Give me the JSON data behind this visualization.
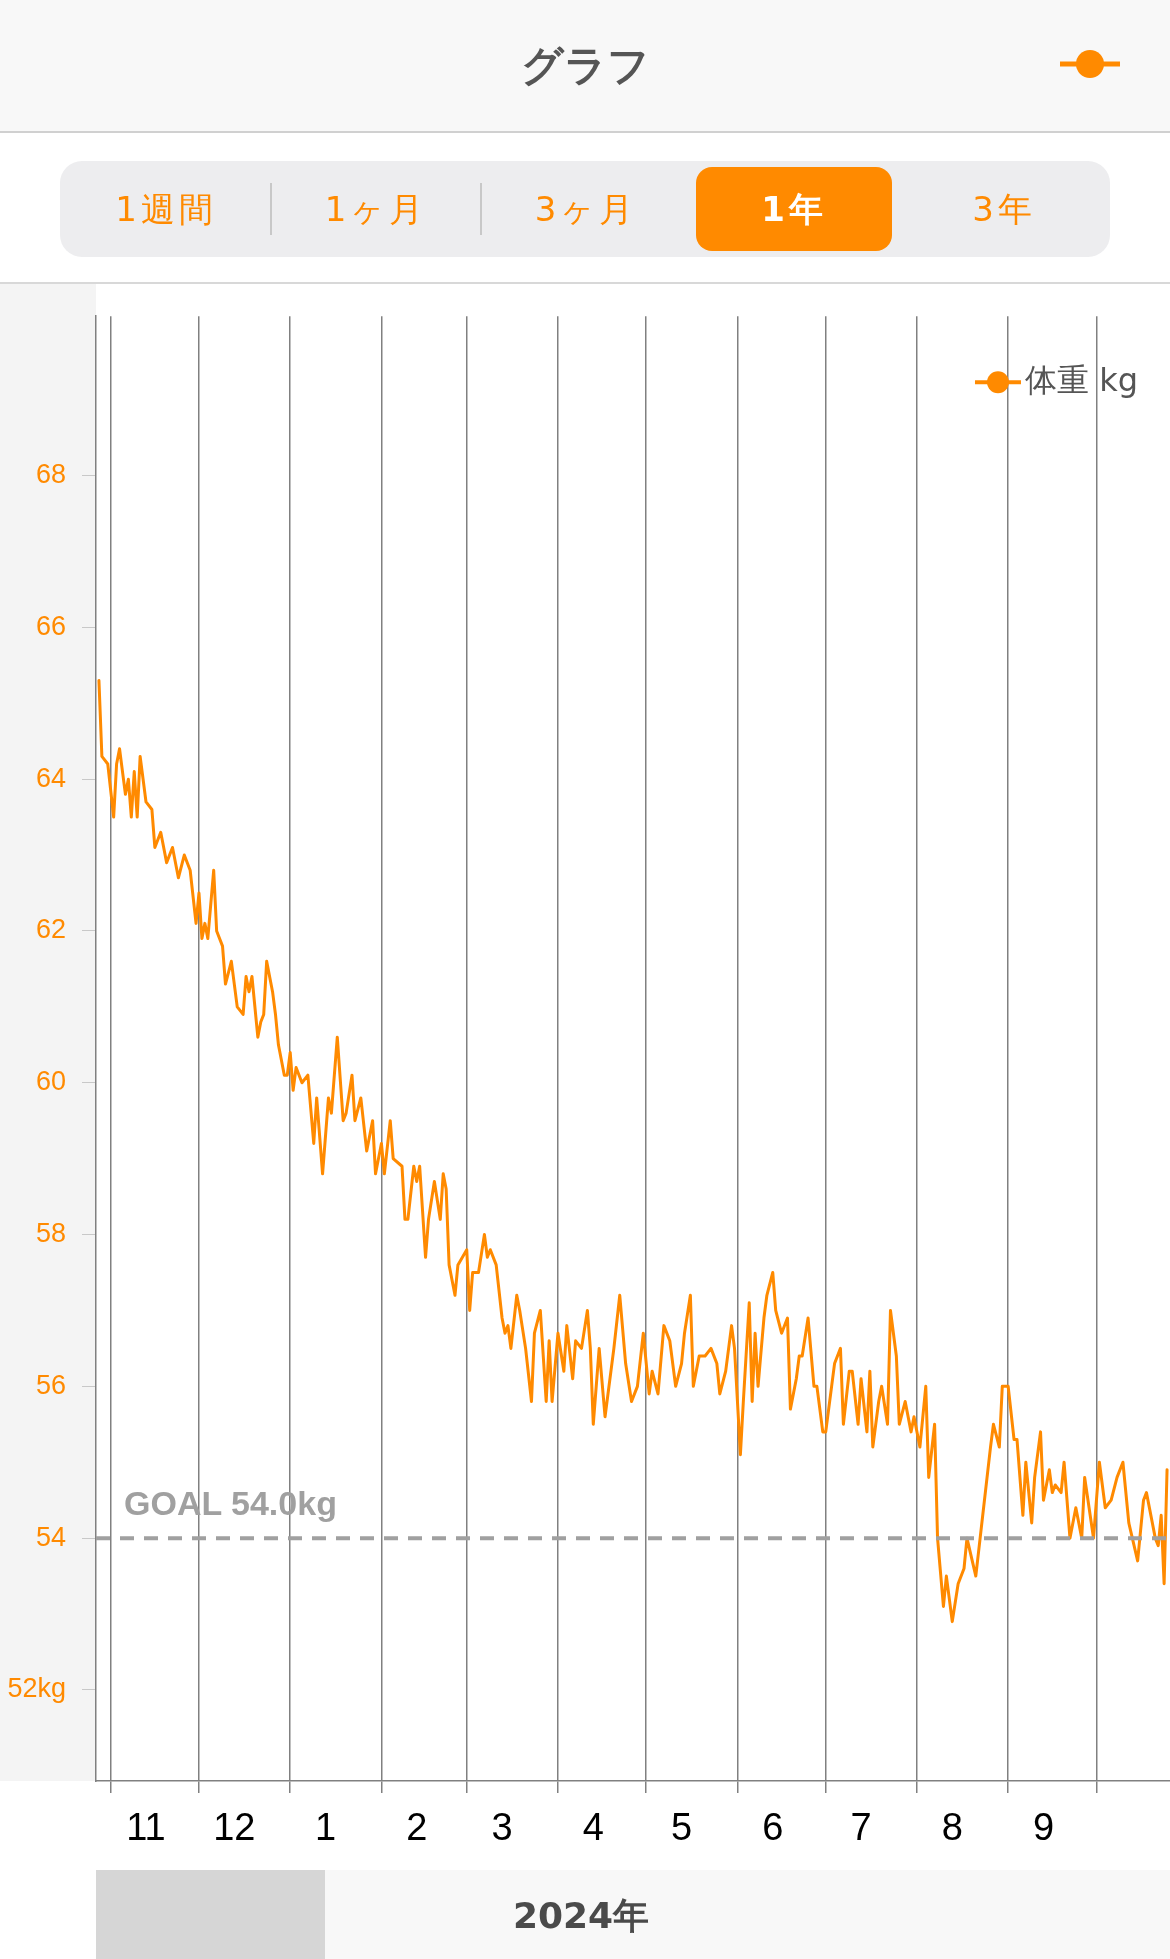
{
  "chart_data": {
    "type": "line",
    "title": "グラフ",
    "annotations": [
      "1週間",
      "1ヶ月",
      "3ヶ月",
      "1年",
      "3年",
      "2024年"
    ],
    "xlim": [
      "2023-10-27",
      "2024-10-26"
    ],
    "xticks": [
      {
        "value": "2023-11-01",
        "label": null
      },
      {
        "value": "2023-11-13",
        "label": "11"
      },
      {
        "value": "2023-12-01",
        "label": null
      },
      {
        "value": "2023-12-13",
        "label": "12"
      },
      {
        "value": "2024-01-01",
        "label": null
      },
      {
        "value": "2024-01-13",
        "label": "1"
      },
      {
        "value": "2024-02-01",
        "label": null
      },
      {
        "value": "2024-02-13",
        "label": "2"
      },
      {
        "value": "2024-03-01",
        "label": null
      },
      {
        "value": "2024-03-13",
        "label": "3"
      },
      {
        "value": "2024-04-01",
        "label": null
      },
      {
        "value": "2024-04-13",
        "label": "4"
      },
      {
        "value": "2024-05-01",
        "label": null
      },
      {
        "value": "2024-05-13",
        "label": "5"
      },
      {
        "value": "2024-06-01",
        "label": null
      },
      {
        "value": "2024-06-13",
        "label": "6"
      },
      {
        "value": "2024-07-01",
        "label": null
      },
      {
        "value": "2024-07-13",
        "label": "7"
      },
      {
        "value": "2024-08-01",
        "label": null
      },
      {
        "value": "2024-08-13",
        "label": "8"
      },
      {
        "value": "2024-09-01",
        "label": null
      },
      {
        "value": "2024-09-13",
        "label": "9"
      },
      {
        "value": "2024-10-01",
        "label": null
      }
    ],
    "ylim": [
      50.8,
      70.1
    ],
    "yticks": [
      {
        "value": 52,
        "label": "52kg"
      },
      54,
      56,
      58,
      60,
      62,
      64,
      66,
      68
    ],
    "grid": "x",
    "legend": "top right",
    "marker": "none",
    "line_style": "solid",
    "ref_lines": [
      {
        "axis": "y",
        "value": 54,
        "label": "GOAL 54.0kg",
        "color": "#a0a0a0",
        "line_style": "dashed"
      }
    ],
    "series": [
      {
        "name": "体重 kg",
        "color": "#ff8a00",
        "x": [
          "2023-10-28",
          "2023-10-29",
          "2023-10-31",
          "2023-11-02",
          "2023-11-03",
          "2023-11-04",
          "2023-11-06",
          "2023-11-07",
          "2023-11-08",
          "2023-11-09",
          "2023-11-10",
          "2023-11-11",
          "2023-11-13",
          "2023-11-15",
          "2023-11-16",
          "2023-11-18",
          "2023-11-20",
          "2023-11-22",
          "2023-11-24",
          "2023-11-26",
          "2023-11-28",
          "2023-11-30",
          "2023-12-01",
          "2023-12-02",
          "2023-12-03",
          "2023-12-04",
          "2023-12-06",
          "2023-12-07",
          "2023-12-09",
          "2023-12-10",
          "2023-12-12",
          "2023-12-14",
          "2023-12-16",
          "2023-12-17",
          "2023-12-18",
          "2023-12-19",
          "2023-12-21",
          "2023-12-22",
          "2023-12-23",
          "2023-12-24",
          "2023-12-26",
          "2023-12-27",
          "2023-12-28",
          "2023-12-30",
          "2023-12-31",
          "2024-01-01",
          "2024-01-02",
          "2024-01-03",
          "2024-01-05",
          "2024-01-07",
          "2024-01-09",
          "2024-01-10",
          "2024-01-12",
          "2024-01-14",
          "2024-01-15",
          "2024-01-17",
          "2024-01-19",
          "2024-01-20",
          "2024-01-22",
          "2024-01-23",
          "2024-01-25",
          "2024-01-27",
          "2024-01-29",
          "2024-01-30",
          "2024-02-01",
          "2024-02-02",
          "2024-02-04",
          "2024-02-05",
          "2024-02-08",
          "2024-02-09",
          "2024-02-10",
          "2024-02-12",
          "2024-02-13",
          "2024-02-14",
          "2024-02-16",
          "2024-02-17",
          "2024-02-19",
          "2024-02-21",
          "2024-02-22",
          "2024-02-23",
          "2024-02-24",
          "2024-02-26",
          "2024-02-27",
          "2024-03-01",
          "2024-03-02",
          "2024-03-03",
          "2024-03-05",
          "2024-03-07",
          "2024-03-08",
          "2024-03-09",
          "2024-03-11",
          "2024-03-13",
          "2024-03-14",
          "2024-03-15",
          "2024-03-16",
          "2024-03-18",
          "2024-03-19",
          "2024-03-21",
          "2024-03-23",
          "2024-03-24",
          "2024-03-26",
          "2024-03-28",
          "2024-03-29",
          "2024-03-30",
          "2024-04-01",
          "2024-04-03",
          "2024-04-04",
          "2024-04-06",
          "2024-04-07",
          "2024-04-09",
          "2024-04-11",
          "2024-04-12",
          "2024-04-13",
          "2024-04-15",
          "2024-04-17",
          "2024-04-20",
          "2024-04-22",
          "2024-04-24",
          "2024-04-26",
          "2024-04-28",
          "2024-04-30",
          "2024-05-02",
          "2024-05-03",
          "2024-05-05",
          "2024-05-07",
          "2024-05-09",
          "2024-05-11",
          "2024-05-13",
          "2024-05-14",
          "2024-05-16",
          "2024-05-17",
          "2024-05-19",
          "2024-05-21",
          "2024-05-23",
          "2024-05-25",
          "2024-05-26",
          "2024-05-28",
          "2024-05-30",
          "2024-05-31",
          "2024-06-02",
          "2024-06-03",
          "2024-06-05",
          "2024-06-06",
          "2024-06-07",
          "2024-06-08",
          "2024-06-10",
          "2024-06-11",
          "2024-06-13",
          "2024-06-14",
          "2024-06-16",
          "2024-06-18",
          "2024-06-19",
          "2024-06-21",
          "2024-06-22",
          "2024-06-23",
          "2024-06-25",
          "2024-06-27",
          "2024-06-28",
          "2024-06-30",
          "2024-07-01",
          "2024-07-03",
          "2024-07-04",
          "2024-07-06",
          "2024-07-07",
          "2024-07-09",
          "2024-07-10",
          "2024-07-12",
          "2024-07-13",
          "2024-07-15",
          "2024-07-16",
          "2024-07-17",
          "2024-07-19",
          "2024-07-20",
          "2024-07-22",
          "2024-07-23",
          "2024-07-25",
          "2024-07-26",
          "2024-07-28",
          "2024-07-30",
          "2024-07-31",
          "2024-08-02",
          "2024-08-04",
          "2024-08-05",
          "2024-08-07",
          "2024-08-08",
          "2024-08-10",
          "2024-08-11",
          "2024-08-13",
          "2024-08-15",
          "2024-08-17",
          "2024-08-18",
          "2024-08-21",
          "2024-08-26",
          "2024-08-27",
          "2024-08-29",
          "2024-08-30",
          "2024-09-01",
          "2024-09-03",
          "2024-09-04",
          "2024-09-06",
          "2024-09-07",
          "2024-09-09",
          "2024-09-10",
          "2024-09-12",
          "2024-09-13",
          "2024-09-15",
          "2024-09-16",
          "2024-09-17",
          "2024-09-19",
          "2024-09-20",
          "2024-09-22",
          "2024-09-24",
          "2024-09-26",
          "2024-09-27",
          "2024-09-30",
          "2024-10-02",
          "2024-10-04",
          "2024-10-06",
          "2024-10-08",
          "2024-10-10",
          "2024-10-12",
          "2024-10-15",
          "2024-10-17",
          "2024-10-18",
          "2024-10-21",
          "2024-10-22",
          "2024-10-23",
          "2024-10-24",
          "2024-10-25"
        ],
        "values": [
          65.3,
          64.3,
          64.2,
          63.5,
          64.2,
          64.4,
          63.8,
          64.0,
          63.5,
          64.1,
          63.5,
          64.3,
          63.7,
          63.6,
          63.1,
          63.3,
          62.9,
          63.1,
          62.7,
          63.0,
          62.8,
          62.1,
          62.5,
          61.9,
          62.1,
          61.9,
          62.8,
          62.0,
          61.8,
          61.3,
          61.6,
          61.0,
          60.9,
          61.4,
          61.2,
          61.4,
          60.6,
          60.8,
          60.9,
          61.6,
          61.2,
          60.9,
          60.5,
          60.1,
          60.1,
          60.4,
          59.9,
          60.2,
          60.0,
          60.1,
          59.2,
          59.8,
          58.8,
          59.8,
          59.6,
          60.6,
          59.5,
          59.6,
          60.1,
          59.5,
          59.8,
          59.1,
          59.5,
          58.8,
          59.2,
          58.8,
          59.5,
          59.0,
          58.9,
          58.2,
          58.2,
          58.9,
          58.7,
          58.9,
          57.7,
          58.2,
          58.7,
          58.2,
          58.8,
          58.6,
          57.6,
          57.2,
          57.6,
          57.8,
          57.0,
          57.5,
          57.5,
          58.0,
          57.7,
          57.8,
          57.6,
          56.9,
          56.7,
          56.8,
          56.5,
          57.2,
          57.0,
          56.5,
          55.8,
          56.7,
          57.0,
          55.8,
          56.6,
          55.8,
          56.7,
          56.2,
          56.8,
          56.1,
          56.6,
          56.5,
          57.0,
          56.5,
          55.5,
          56.5,
          55.6,
          56.5,
          57.2,
          56.3,
          55.8,
          56.0,
          56.7,
          55.9,
          56.2,
          55.9,
          56.8,
          56.6,
          56.0,
          56.3,
          56.7,
          57.2,
          56.0,
          56.4,
          56.4,
          56.5,
          56.3,
          55.9,
          56.2,
          56.8,
          56.5,
          55.1,
          55.8,
          57.1,
          55.8,
          56.7,
          56.0,
          56.9,
          57.2,
          57.5,
          57.0,
          56.7,
          56.9,
          55.7,
          56.1,
          56.4,
          56.4,
          56.9,
          56.0,
          56.0,
          55.4,
          55.4,
          56.0,
          56.3,
          56.5,
          55.5,
          56.2,
          56.2,
          55.5,
          56.1,
          55.4,
          56.2,
          55.2,
          55.8,
          56.0,
          55.5,
          57.0,
          56.4,
          55.5,
          55.8,
          55.4,
          55.6,
          55.2,
          56.0,
          54.8,
          55.5,
          54.0,
          53.1,
          53.5,
          52.9,
          53.4,
          53.6,
          54.0,
          53.5,
          55.2,
          55.5,
          55.2,
          56.0,
          56.0,
          55.3,
          55.3,
          54.3,
          55.0,
          54.2,
          54.8,
          55.4,
          54.5,
          54.9,
          54.6,
          54.7,
          54.6,
          55.0,
          54.0,
          54.4,
          54.0,
          54.8,
          54.0,
          55.0,
          54.4,
          54.5,
          54.8,
          55.0,
          54.2,
          53.7,
          54.5,
          54.6,
          54.0,
          53.9,
          54.3,
          53.4,
          54.9
        ]
      }
    ]
  }
}
